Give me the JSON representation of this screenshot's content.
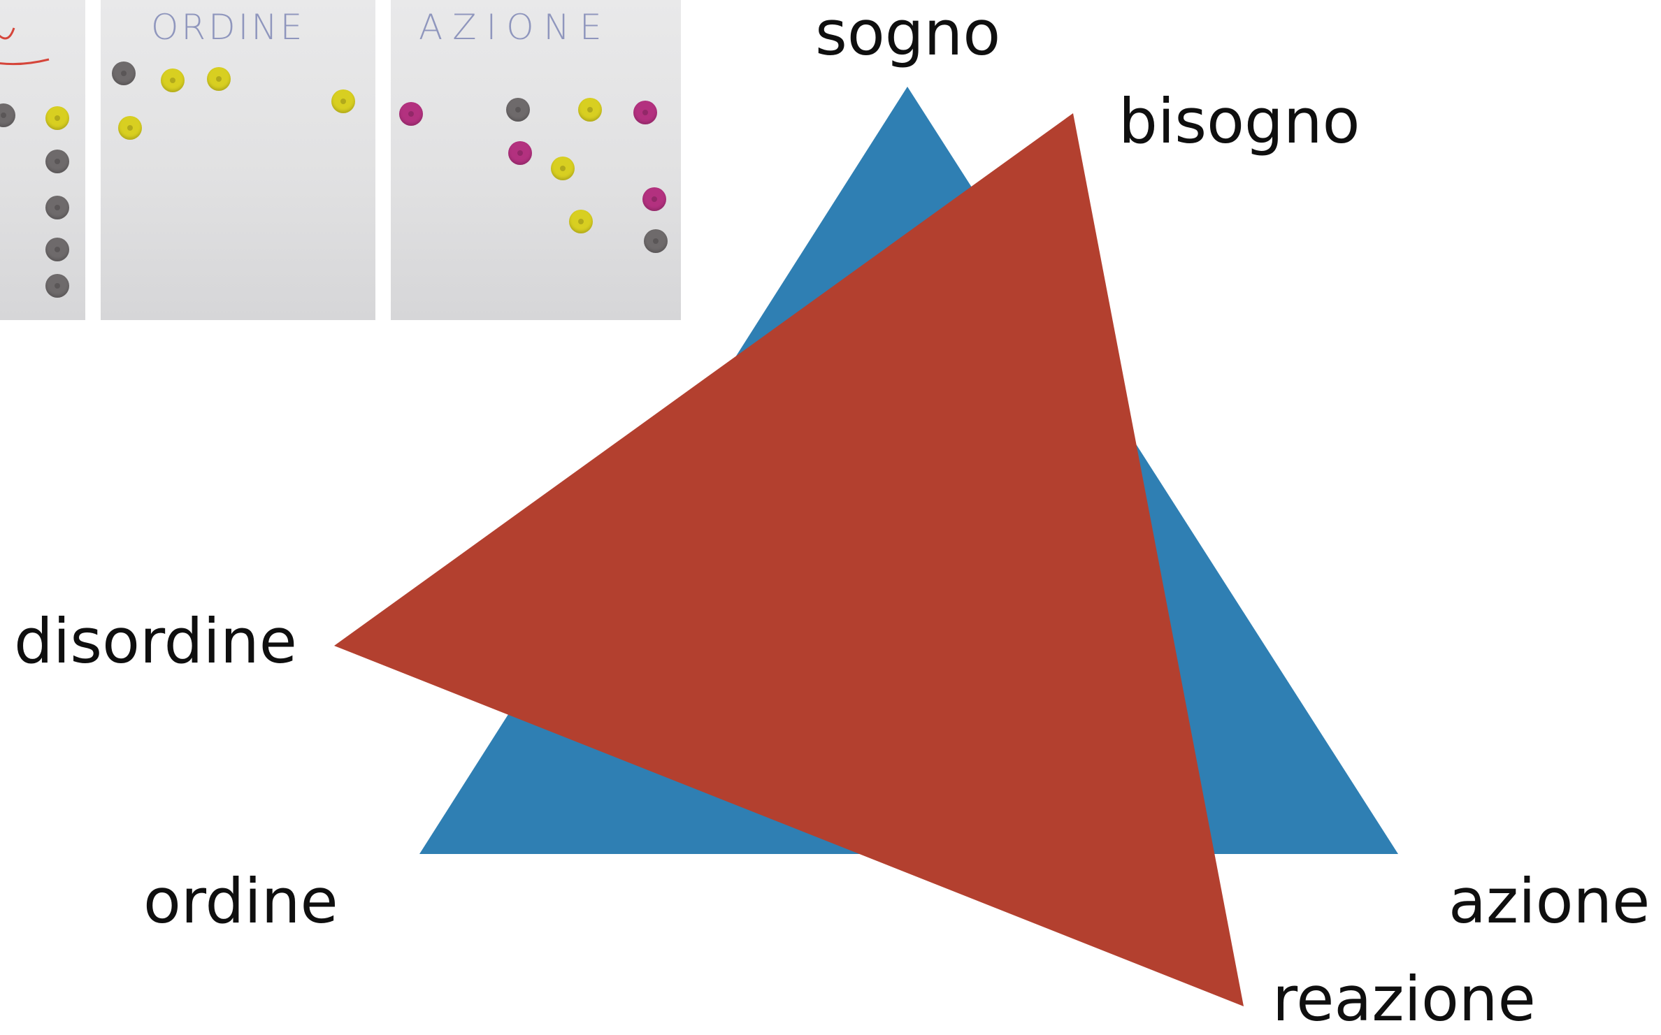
{
  "photos": [
    {
      "label": "",
      "dots": [
        {
          "color": "#6e6a6b"
        },
        {
          "color": "#d8cf21"
        },
        {
          "color": "#6e6a6b"
        },
        {
          "color": "#6e6a6b"
        },
        {
          "color": "#6e6a6b"
        },
        {
          "color": "#6e6a6b"
        }
      ]
    },
    {
      "label": "ORDINE",
      "dots": [
        {
          "color": "#6e6a6b"
        },
        {
          "color": "#d8cf21"
        },
        {
          "color": "#d8cf21"
        },
        {
          "color": "#d8cf21"
        },
        {
          "color": "#d8cf21"
        }
      ]
    },
    {
      "label": "AZIONE",
      "dots": [
        {
          "color": "#b3317f"
        },
        {
          "color": "#6e6a6b"
        },
        {
          "color": "#d8cf21"
        },
        {
          "color": "#b3317f"
        },
        {
          "color": "#b3317f"
        },
        {
          "color": "#d8cf21"
        },
        {
          "color": "#d8cf21"
        },
        {
          "color": "#b3317f"
        },
        {
          "color": "#6e6a6b"
        }
      ]
    }
  ],
  "triangles": {
    "blue": {
      "color": "#2f7fb3"
    },
    "red": {
      "color": "#b3402f"
    }
  },
  "labels": {
    "sogno": "sogno",
    "bisogno": "bisogno",
    "disordine": "disordine",
    "ordine": "ordine",
    "azione": "azione",
    "reazione": "reazione"
  }
}
